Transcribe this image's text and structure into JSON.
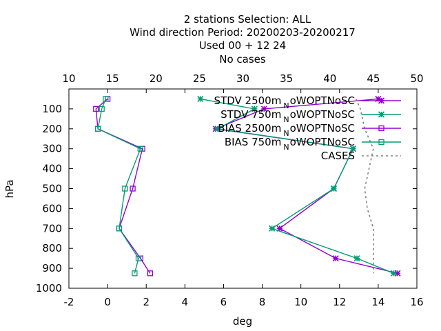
{
  "chart_data": {
    "type": "line",
    "title_lines": [
      "2 stations Selection: ALL",
      "Wind direction  Period: 20200203-20200217",
      "Used  00 + 12 24",
      "No cases"
    ],
    "xlabel": "deg",
    "ylabel": "hPa",
    "x_bottom": {
      "range": [
        -2,
        16
      ],
      "ticks": [
        "-2",
        "0",
        "2",
        "4",
        "6",
        "8",
        "10",
        "12",
        "14",
        "16"
      ]
    },
    "x_top": {
      "range": [
        10,
        50
      ],
      "ticks": [
        "10",
        "15",
        "20",
        "25",
        "30",
        "35",
        "40",
        "45",
        "50"
      ]
    },
    "y": {
      "range": [
        1000,
        0
      ],
      "reversed": true,
      "ticks": [
        "100",
        "200",
        "300",
        "400",
        "500",
        "600",
        "700",
        "800",
        "900",
        "1000"
      ]
    },
    "grid": false,
    "legend_position": "top-right",
    "series": [
      {
        "name_main": "STDV 2500m",
        "name_sub": "N",
        "name_tail": "oWOPTNoSC",
        "color": "#9400d3",
        "marker": "x-star",
        "points": [
          [
            14.0,
            50
          ],
          [
            8.1,
            100
          ],
          [
            5.6,
            200
          ],
          [
            12.7,
            300
          ],
          [
            11.7,
            500
          ],
          [
            8.9,
            700
          ],
          [
            11.8,
            850
          ],
          [
            15.0,
            925
          ]
        ]
      },
      {
        "name_main": "STDV 750m",
        "name_sub": "N",
        "name_tail": "oWOPTNoSC",
        "color": "#009e73",
        "marker": "x-star",
        "points": [
          [
            4.8,
            50
          ],
          [
            7.6,
            100
          ],
          [
            5.7,
            200
          ],
          [
            12.7,
            300
          ],
          [
            11.7,
            500
          ],
          [
            8.5,
            700
          ],
          [
            12.9,
            850
          ],
          [
            14.8,
            925
          ]
        ]
      },
      {
        "name_main": "BIAS 2500m",
        "name_sub": "N",
        "name_tail": "oWOPTNoSC",
        "color": "#9400d3",
        "marker": "square",
        "points": [
          [
            0.0,
            50
          ],
          [
            -0.6,
            100
          ],
          [
            -0.5,
            200
          ],
          [
            1.8,
            300
          ],
          [
            1.3,
            500
          ],
          [
            0.6,
            700
          ],
          [
            1.7,
            850
          ],
          [
            2.2,
            925
          ]
        ]
      },
      {
        "name_main": "BIAS 750m",
        "name_sub": "N",
        "name_tail": "oWOPTNoSC",
        "color": "#009e73",
        "marker": "square",
        "points": [
          [
            -0.1,
            50
          ],
          [
            -0.3,
            100
          ],
          [
            -0.5,
            200
          ],
          [
            1.7,
            300
          ],
          [
            0.9,
            500
          ],
          [
            0.6,
            700
          ],
          [
            1.6,
            850
          ],
          [
            1.4,
            925
          ]
        ]
      },
      {
        "name_main": "CASES",
        "name_sub": "",
        "name_tail": "",
        "color": "#808080",
        "marker": "none",
        "dashed": true,
        "axis": "top",
        "points": [
          [
            43.0,
            50
          ],
          [
            43.5,
            100
          ],
          [
            44.0,
            200
          ],
          [
            45.0,
            300
          ],
          [
            44.5,
            400
          ],
          [
            44.0,
            500
          ],
          [
            44.3,
            600
          ],
          [
            45.0,
            700
          ],
          [
            45.0,
            850
          ],
          [
            45.0,
            925
          ]
        ]
      }
    ]
  }
}
